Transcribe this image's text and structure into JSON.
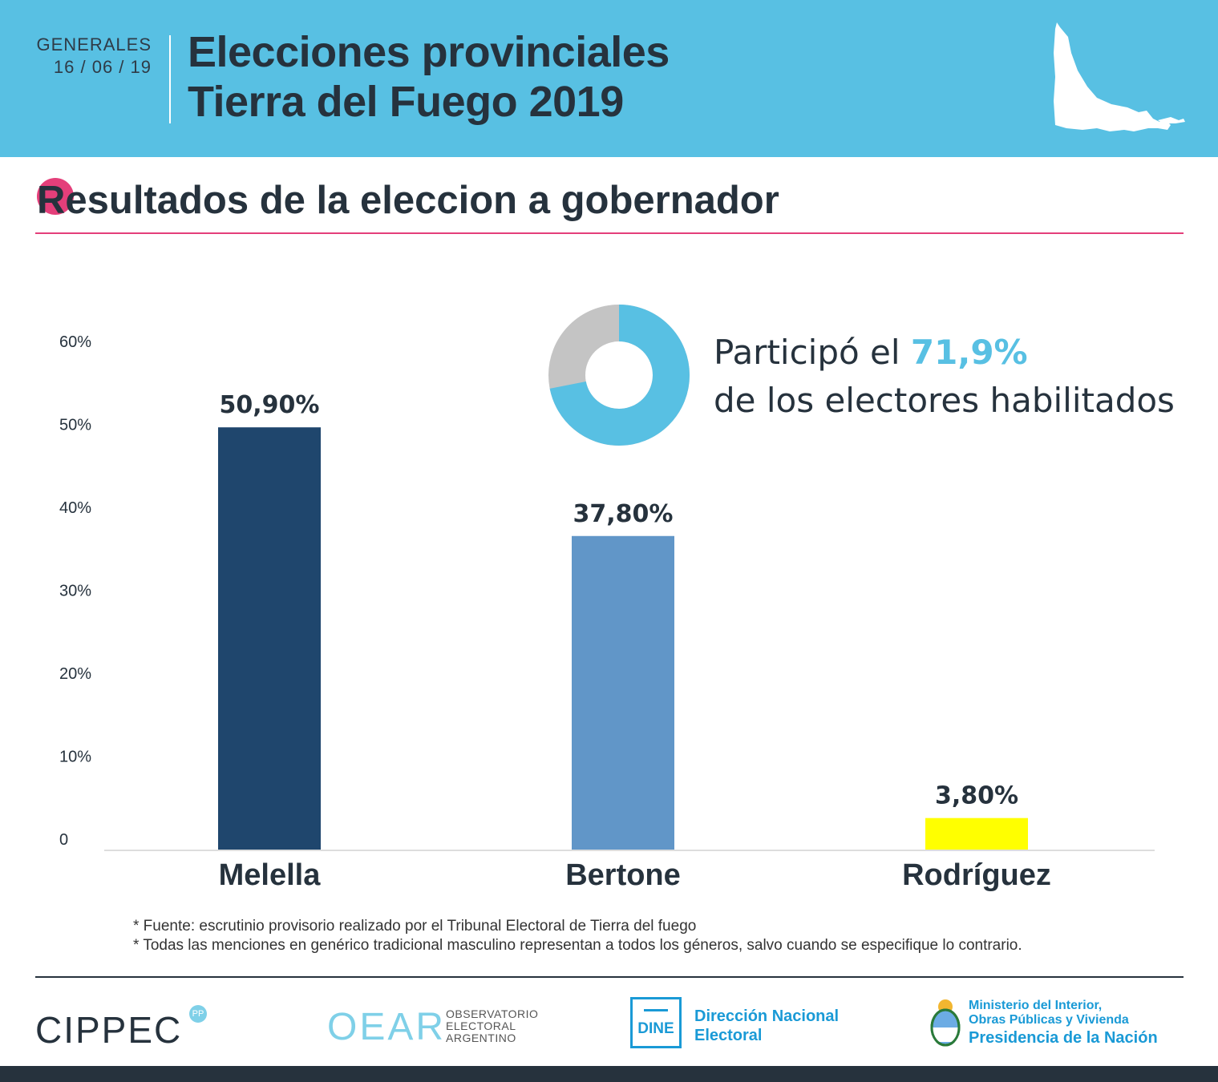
{
  "header": {
    "tag_line1": "GENERALES",
    "tag_line2": "16 / 06 / 19",
    "title_line1": "Elecciones provinciales",
    "title_line2": "Tierra del Fuego 2019",
    "bg_color": "#58c0e3"
  },
  "section": {
    "title": "Resultados de la eleccion a gobernador",
    "accent_color": "#e43f7a"
  },
  "participation": {
    "prefix": "Participó el ",
    "value_text": "71,9%",
    "suffix": "de los electores habilitados",
    "value": 71.9
  },
  "chart_data": {
    "type": "bar",
    "title": "Resultados de la eleccion a gobernador",
    "categories": [
      "Melella",
      "Bertone",
      "Rodríguez"
    ],
    "values": [
      50.9,
      37.8,
      3.8
    ],
    "value_labels": [
      "50,90%",
      "37,80%",
      "3,80%"
    ],
    "colors": [
      "#1f466d",
      "#6196c8",
      "#ffff00"
    ],
    "yticks": [
      0,
      10,
      20,
      30,
      40,
      50,
      60
    ],
    "ytick_labels": [
      "0",
      "10%",
      "20%",
      "30%",
      "40%",
      "50%",
      "60%"
    ],
    "ylim": [
      0,
      60
    ],
    "xlabel": "",
    "ylabel": "",
    "grid": false
  },
  "notes": {
    "line1": "* Fuente: escrutinio provisorio realizado por el Tribunal Electoral de Tierra del fuego",
    "line2": "* Todas las menciones en genérico tradicional masculino representan a todos los géneros, salvo cuando se especifique lo contrario."
  },
  "logos": {
    "cippec": "CIPPEC",
    "cippec_badge": "PP",
    "oear": "OEAR",
    "oear_line1": "OBSERVATORIO",
    "oear_line2": "ELECTORAL",
    "oear_line3": "ARGENTINO",
    "dine_badge": "DINE",
    "dine_line1": "Dirección Nacional",
    "dine_line2": "Electoral",
    "ministry_line1": "Ministerio del Interior,",
    "ministry_line2": "Obras Públicas y Vivienda",
    "ministry_line3": "Presidencia de la Nación"
  }
}
